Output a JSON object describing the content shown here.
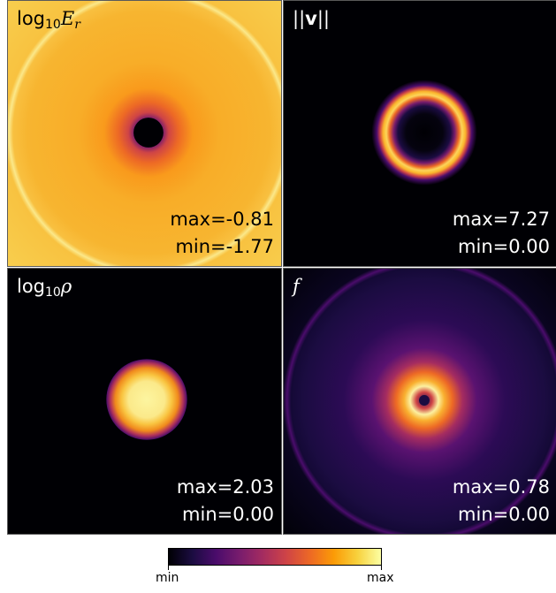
{
  "panels": [
    {
      "label_main": "log",
      "label_sub": "10",
      "label_var": "E",
      "label_var_sub": "r",
      "max_text": "max=-0.81",
      "min_text": "min=-1.77"
    },
    {
      "label_text": "||",
      "label_bold": "v",
      "label_text2": "||",
      "max_text": "max=7.27",
      "min_text": "min=0.00"
    },
    {
      "label_main": "log",
      "label_sub": "10",
      "label_var": "ρ",
      "max_text": "max=2.03",
      "min_text": "min=0.00"
    },
    {
      "label_var": "f",
      "max_text": "max=0.78",
      "min_text": "min=0.00"
    }
  ],
  "colorbar": {
    "min_label": "min",
    "max_label": "max",
    "colormap": [
      "#000004",
      "#1b0c41",
      "#4a0c6b",
      "#781c6d",
      "#a52c60",
      "#cf4446",
      "#ed6925",
      "#fb9b06",
      "#f7d13d",
      "#fcffa4"
    ]
  }
}
